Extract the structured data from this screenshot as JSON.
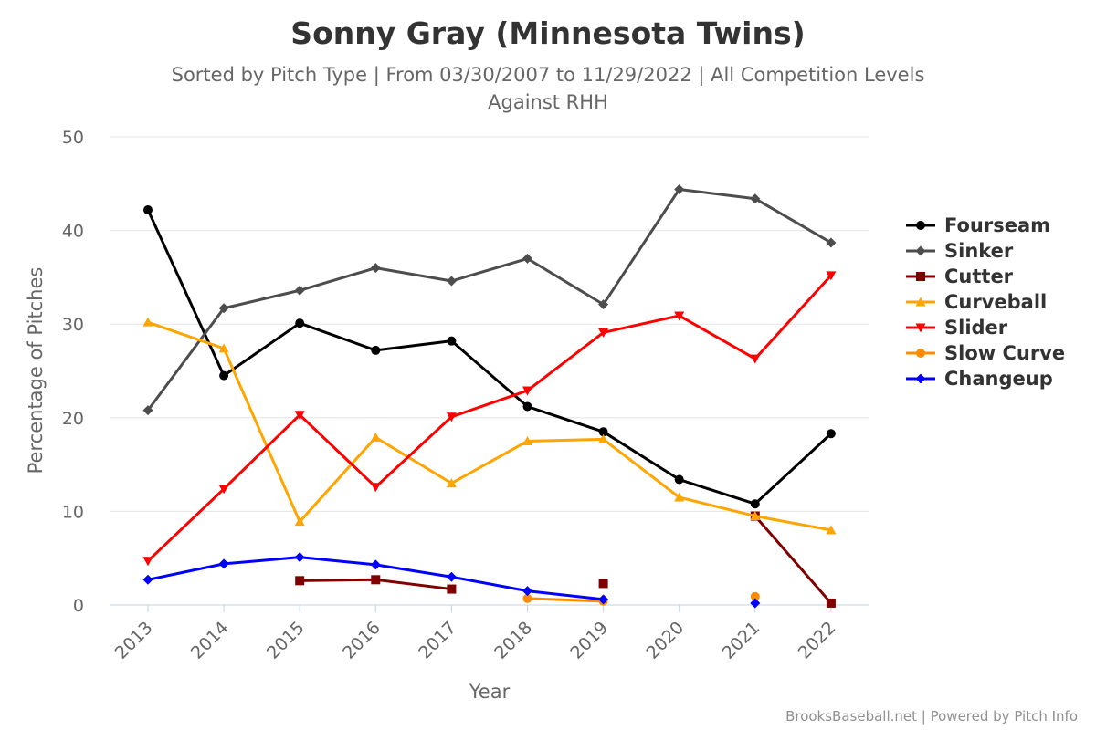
{
  "chart_data": {
    "type": "line",
    "title": "Sonny Gray (Minnesota Twins)",
    "subtitle_line1": "Sorted by Pitch Type | From 03/30/2007 to 11/29/2022 | All Competition Levels",
    "subtitle_line2": "Against RHH",
    "xlabel": "Year",
    "ylabel": "Percentage of Pitches",
    "ylim": [
      0,
      50
    ],
    "yticks": [
      "0",
      "10",
      "20",
      "30",
      "40",
      "50"
    ],
    "categories": [
      "2013",
      "2014",
      "2015",
      "2016",
      "2017",
      "2018",
      "2019",
      "2020",
      "2021",
      "2022"
    ],
    "legend_position": "right",
    "credits": "BrooksBaseball.net | Powered by Pitch Info",
    "series": [
      {
        "name": "Fourseam",
        "color": "#000000",
        "marker": "circle",
        "values": [
          42.2,
          24.5,
          30.1,
          27.2,
          28.2,
          21.2,
          18.5,
          13.4,
          10.8,
          18.3
        ]
      },
      {
        "name": "Sinker",
        "color": "#4d4d4d",
        "marker": "diamond",
        "values": [
          20.8,
          31.7,
          33.6,
          36.0,
          34.6,
          37.0,
          32.1,
          44.4,
          43.4,
          38.7
        ]
      },
      {
        "name": "Cutter",
        "color": "#800000",
        "marker": "square",
        "values": [
          null,
          null,
          2.6,
          2.7,
          1.7,
          null,
          2.3,
          null,
          9.5,
          0.2
        ]
      },
      {
        "name": "Curveball",
        "color": "#ffa500",
        "marker": "triangle",
        "values": [
          30.2,
          27.4,
          8.9,
          17.9,
          13.0,
          17.5,
          17.7,
          11.5,
          9.5,
          8.0
        ]
      },
      {
        "name": "Slider",
        "color": "#ff0000",
        "marker": "triangle-down",
        "values": [
          4.7,
          12.4,
          20.3,
          12.6,
          20.1,
          22.9,
          29.1,
          30.9,
          26.3,
          35.2
        ]
      },
      {
        "name": "Slow Curve",
        "color": "#ff8c00",
        "marker": "circle",
        "values": [
          null,
          null,
          null,
          null,
          null,
          0.7,
          0.4,
          null,
          0.9,
          null
        ]
      },
      {
        "name": "Changeup",
        "color": "#0000ff",
        "marker": "diamond",
        "values": [
          2.7,
          4.4,
          5.1,
          4.3,
          3.0,
          1.5,
          0.6,
          null,
          0.2,
          null
        ]
      }
    ]
  }
}
